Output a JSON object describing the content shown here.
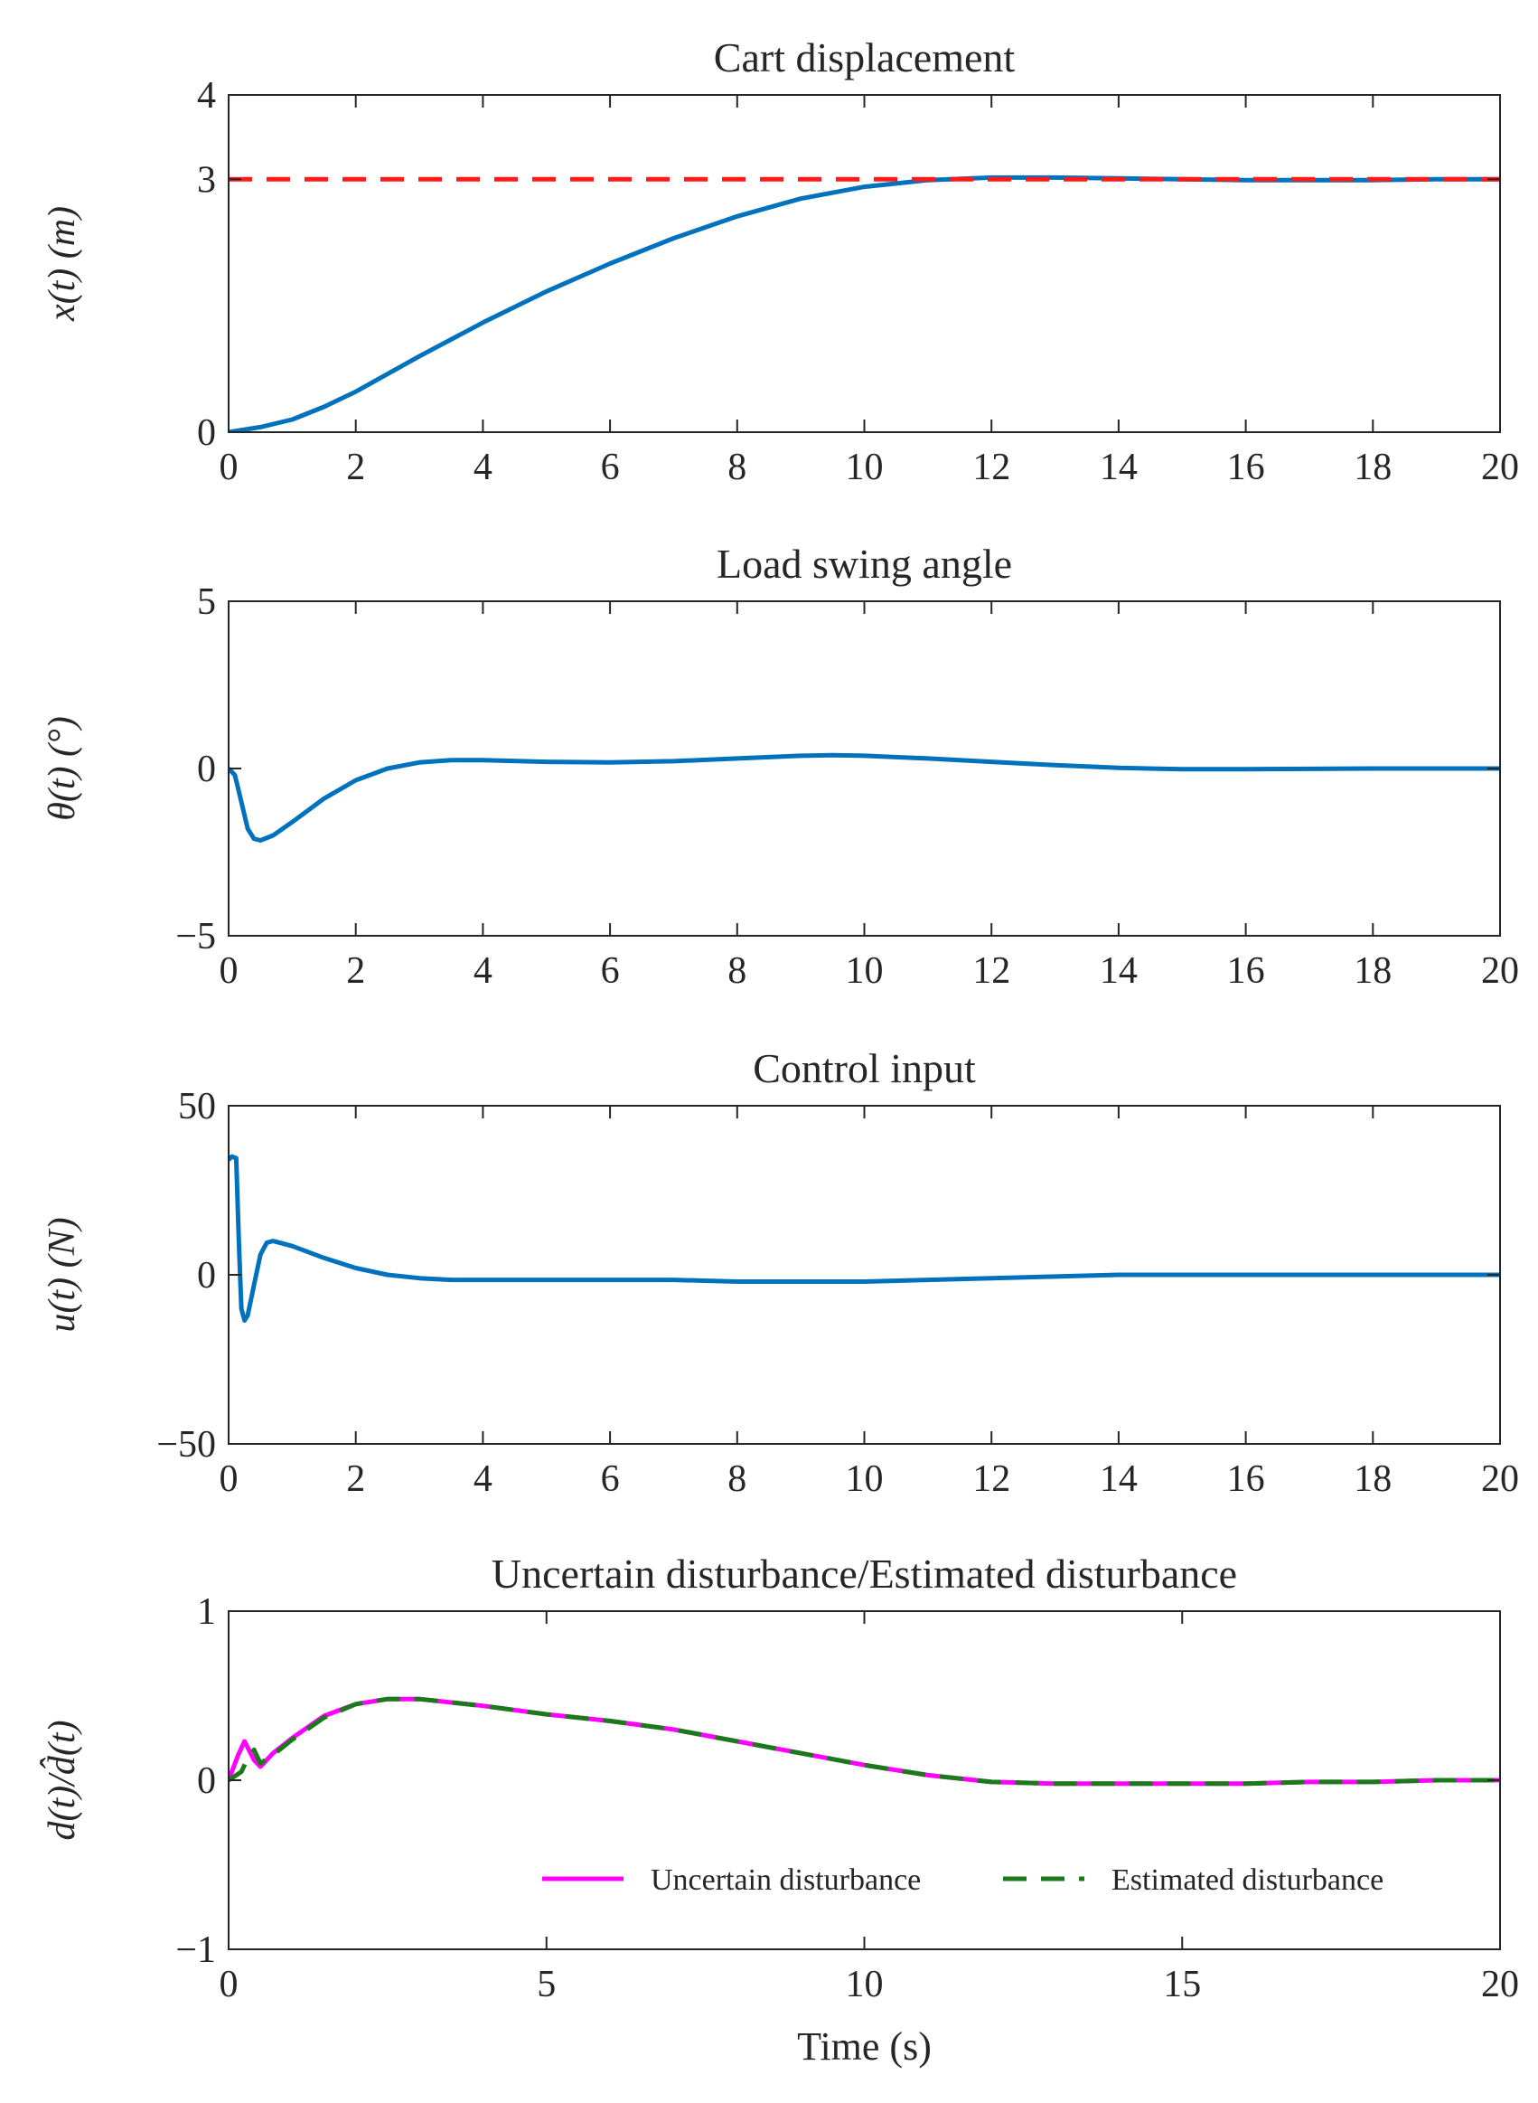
{
  "chart_data": [
    {
      "type": "line",
      "title": "Cart displacement",
      "xlabel": "",
      "ylabel": "x(t) (m)",
      "xlim": [
        0,
        20
      ],
      "ylim": [
        0,
        4
      ],
      "xticks": [
        "0",
        "2",
        "4",
        "6",
        "8",
        "10",
        "12",
        "14",
        "16",
        "18",
        "20"
      ],
      "yticks": [
        "0",
        "3",
        "4"
      ],
      "ytick_values": [
        0,
        3,
        4
      ],
      "grid": false,
      "series": [
        {
          "name": "x(t)",
          "color": "#0072bd",
          "style": "solid",
          "x": [
            0,
            0.5,
            1,
            1.5,
            2,
            3,
            4,
            5,
            6,
            7,
            8,
            9,
            10,
            11,
            12,
            13,
            14,
            15,
            16,
            17,
            18,
            19,
            20
          ],
          "y": [
            0,
            0.06,
            0.15,
            0.3,
            0.48,
            0.9,
            1.3,
            1.67,
            2.0,
            2.3,
            2.56,
            2.77,
            2.91,
            2.99,
            3.02,
            3.02,
            3.01,
            3.0,
            2.99,
            2.99,
            2.99,
            3.0,
            3.0
          ]
        },
        {
          "name": "Reference",
          "color": "#ff1a1a",
          "style": "dashed",
          "x": [
            0,
            20
          ],
          "y": [
            3,
            3
          ]
        }
      ]
    },
    {
      "type": "line",
      "title": "Load swing angle",
      "xlabel": "",
      "ylabel": "θ(t) (°)",
      "xlim": [
        0,
        20
      ],
      "ylim": [
        -5,
        5
      ],
      "xticks": [
        "0",
        "2",
        "4",
        "6",
        "8",
        "10",
        "12",
        "14",
        "16",
        "18",
        "20"
      ],
      "yticks": [
        "−5",
        "0",
        "5"
      ],
      "ytick_values": [
        -5,
        0,
        5
      ],
      "grid": false,
      "series": [
        {
          "name": "θ(t)",
          "color": "#0072bd",
          "style": "solid",
          "x": [
            0,
            0.1,
            0.2,
            0.3,
            0.4,
            0.5,
            0.7,
            1,
            1.5,
            2,
            2.5,
            3,
            3.5,
            4,
            5,
            6,
            7,
            8,
            9,
            9.5,
            10,
            11,
            12,
            13,
            14,
            15,
            16,
            17,
            18,
            19,
            20
          ],
          "y": [
            0,
            -0.2,
            -1.0,
            -1.8,
            -2.1,
            -2.15,
            -2.0,
            -1.6,
            -0.9,
            -0.35,
            0.0,
            0.18,
            0.25,
            0.25,
            0.2,
            0.18,
            0.22,
            0.3,
            0.38,
            0.4,
            0.38,
            0.3,
            0.2,
            0.1,
            0.02,
            -0.02,
            -0.02,
            -0.01,
            0.0,
            0.0,
            0.0
          ]
        }
      ]
    },
    {
      "type": "line",
      "title": "Control input",
      "xlabel": "",
      "ylabel": "u(t) (N)",
      "xlim": [
        0,
        20
      ],
      "ylim": [
        -50,
        50
      ],
      "xticks": [
        "0",
        "2",
        "4",
        "6",
        "8",
        "10",
        "12",
        "14",
        "16",
        "18",
        "20"
      ],
      "yticks": [
        "−50",
        "0",
        "50"
      ],
      "ytick_values": [
        -50,
        0,
        50
      ],
      "grid": false,
      "series": [
        {
          "name": "u(t)",
          "color": "#0072bd",
          "style": "solid",
          "x": [
            0,
            0.05,
            0.12,
            0.16,
            0.2,
            0.25,
            0.3,
            0.4,
            0.5,
            0.6,
            0.7,
            1,
            1.5,
            2,
            2.5,
            3,
            3.5,
            4,
            5,
            6,
            7,
            8,
            9,
            10,
            11,
            12,
            13,
            14,
            15,
            16,
            17,
            18,
            19,
            20
          ],
          "y": [
            34,
            35,
            34.5,
            10,
            -10,
            -13.5,
            -12,
            -3,
            6,
            9.5,
            10,
            8.5,
            5,
            2,
            0,
            -1,
            -1.5,
            -1.5,
            -1.5,
            -1.5,
            -1.5,
            -2,
            -2,
            -2,
            -1.5,
            -1,
            -0.5,
            0,
            0,
            0,
            0,
            0,
            0,
            0
          ]
        }
      ]
    },
    {
      "type": "line",
      "title": "Uncertain disturbance/Estimated disturbance",
      "xlabel": "Time (s)",
      "ylabel": "d(t)/d̂(t)",
      "xlim": [
        0,
        20
      ],
      "ylim": [
        -1,
        1
      ],
      "xticks": [
        "0",
        "5",
        "10",
        "15",
        "20"
      ],
      "yticks": [
        "−1",
        "0",
        "1"
      ],
      "ytick_values": [
        -1,
        0,
        1
      ],
      "grid": false,
      "legend": "bottom-right",
      "series": [
        {
          "name": "Uncertain disturbance",
          "color": "#ff00ff",
          "style": "solid",
          "x": [
            0,
            0.15,
            0.25,
            0.4,
            0.5,
            0.7,
            1,
            1.5,
            2,
            2.5,
            3,
            4,
            5,
            6,
            7,
            8,
            9,
            10,
            11,
            12,
            13,
            14,
            15,
            16,
            17,
            18,
            19,
            20
          ],
          "y": [
            0,
            0.15,
            0.23,
            0.12,
            0.08,
            0.16,
            0.25,
            0.38,
            0.45,
            0.48,
            0.48,
            0.44,
            0.39,
            0.35,
            0.3,
            0.23,
            0.16,
            0.09,
            0.03,
            -0.01,
            -0.02,
            -0.02,
            -0.02,
            -0.02,
            -0.01,
            -0.01,
            0.0,
            0.0
          ]
        },
        {
          "name": "Estimated disturbance",
          "color": "#1a7a1a",
          "style": "dashed",
          "x": [
            0,
            0.2,
            0.3,
            0.4,
            0.5,
            0.7,
            1,
            1.5,
            2,
            2.5,
            3,
            4,
            5,
            6,
            7,
            8,
            9,
            10,
            11,
            12,
            13,
            14,
            15,
            16,
            17,
            18,
            19,
            20
          ],
          "y": [
            0,
            0.05,
            0.13,
            0.18,
            0.1,
            0.15,
            0.24,
            0.37,
            0.45,
            0.48,
            0.48,
            0.44,
            0.39,
            0.35,
            0.3,
            0.23,
            0.16,
            0.09,
            0.03,
            -0.01,
            -0.02,
            -0.02,
            -0.02,
            -0.02,
            -0.01,
            -0.01,
            0.0,
            0.0
          ]
        }
      ]
    }
  ]
}
